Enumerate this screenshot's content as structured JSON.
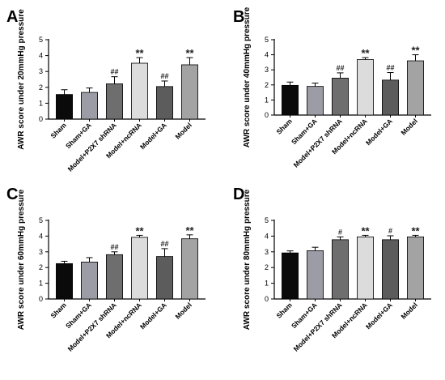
{
  "colors": [
    "#0a0a0a",
    "#9c9ca6",
    "#6e6e6e",
    "#dcdcdc",
    "#5c5c5c",
    "#a3a3a3"
  ],
  "chart_data": [
    {
      "type": "bar",
      "panel": "A",
      "ylabel": "AWR score under 20mmHg pressure",
      "ylim": [
        0,
        5
      ],
      "yticks": [
        "0",
        "1",
        "2",
        "3",
        "4",
        "5"
      ],
      "categories": [
        "Sham",
        "Sham+GA",
        "Model+P2X7 shRNA",
        "Model+ncRNA",
        "Model+GA",
        "Model"
      ],
      "values": [
        1.55,
        1.68,
        2.22,
        3.52,
        2.05,
        3.42
      ],
      "errors": [
        0.3,
        0.28,
        0.45,
        0.35,
        0.35,
        0.45
      ],
      "annotations": [
        "",
        "",
        "##",
        "**",
        "##",
        "**"
      ]
    },
    {
      "type": "bar",
      "panel": "B",
      "ylabel": "AWR score under 40mmHg pressure",
      "ylim": [
        0,
        5
      ],
      "yticks": [
        "0",
        "1",
        "2",
        "3",
        "4",
        "5"
      ],
      "categories": [
        "Sham",
        "Sham+GA",
        "Model+P2X7 shRNA",
        "Model+ncRNA",
        "Model+GA",
        "Model"
      ],
      "values": [
        1.97,
        1.9,
        2.45,
        3.68,
        2.32,
        3.6
      ],
      "errors": [
        0.22,
        0.22,
        0.35,
        0.13,
        0.5,
        0.4
      ],
      "annotations": [
        "",
        "",
        "##",
        "**",
        "##",
        "**"
      ]
    },
    {
      "type": "bar",
      "panel": "C",
      "ylabel": "AWR score under 60mmHg pressure",
      "ylim": [
        0,
        5
      ],
      "yticks": [
        "0",
        "1",
        "2",
        "3",
        "4",
        "5"
      ],
      "categories": [
        "Sham",
        "Sham+GA",
        "Model+P2X7 shRNA",
        "Model+ncRNA",
        "Model+GA",
        "Model"
      ],
      "values": [
        2.25,
        2.35,
        2.82,
        3.92,
        2.7,
        3.83
      ],
      "errors": [
        0.15,
        0.28,
        0.18,
        0.13,
        0.5,
        0.25
      ],
      "annotations": [
        "",
        "",
        "##",
        "**",
        "##",
        "**"
      ]
    },
    {
      "type": "bar",
      "panel": "D",
      "ylabel": "AWR score under 80mmHg pressure",
      "ylim": [
        0,
        5
      ],
      "yticks": [
        "0",
        "1",
        "2",
        "3",
        "4",
        "5"
      ],
      "categories": [
        "Sham",
        "Sham+GA",
        "Model+P2X7 shRNA",
        "Model+ncRNA",
        "Model+GA",
        "Model"
      ],
      "values": [
        2.93,
        3.07,
        3.77,
        3.95,
        3.77,
        3.95
      ],
      "errors": [
        0.13,
        0.22,
        0.18,
        0.1,
        0.25,
        0.1
      ],
      "annotations": [
        "",
        "",
        "#",
        "**",
        "#",
        "**"
      ]
    }
  ]
}
